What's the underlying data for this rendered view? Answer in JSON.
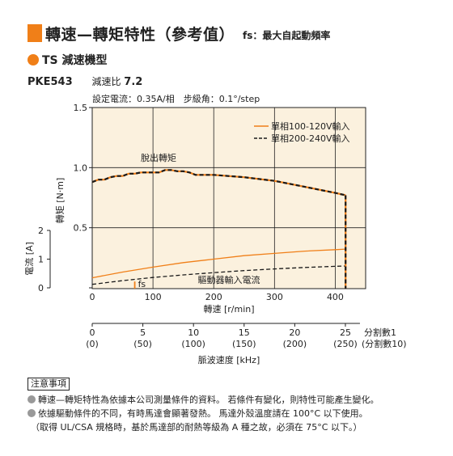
{
  "header": {
    "title": "轉速—轉矩特性（參考值）",
    "fs_note": "fs：最大自起動頻率"
  },
  "series_label": "TS 減速機型",
  "model": {
    "code": "PKE543",
    "ratio_label": "減速比",
    "ratio_value": "7.2"
  },
  "conditions": "設定電流：0.35A/相　步級角：0.1°/step",
  "chart_data": {
    "type": "line",
    "background": "#fbf1de",
    "torque_axis": {
      "title": "轉矩 [N·m]",
      "ylim": [
        0,
        1.5
      ],
      "ticks": [
        "1.5",
        "1.0",
        "0.5",
        "0"
      ],
      "tick_values": [
        1.5,
        1.0,
        0.5,
        0
      ]
    },
    "current_axis": {
      "title": "電流 [A]",
      "ylim": [
        0,
        2
      ],
      "ticks": [
        "2",
        "1",
        "0"
      ],
      "tick_values": [
        2,
        1,
        0
      ]
    },
    "speed_axis": {
      "title": "轉速 [r/min]",
      "xlim": [
        0,
        450
      ],
      "ticks": [
        "0",
        "100",
        "200",
        "300",
        "400"
      ],
      "tick_values": [
        0,
        100,
        200,
        300,
        400
      ]
    },
    "pulse_axis": {
      "title": "脈波速度 [kHz]",
      "ticks": [
        "0",
        "5",
        "10",
        "15",
        "20",
        "25"
      ],
      "tick_values": [
        0,
        5,
        10,
        15,
        20,
        25
      ],
      "subticks": [
        "(0)",
        "(50)",
        "(100)",
        "(150)",
        "(200)",
        "(250)"
      ],
      "division_labels": [
        "分割數1",
        "(分割數10)"
      ]
    },
    "grid": true,
    "legend_position": "top-right",
    "series": [
      {
        "name": "單相100-120V輸入",
        "color": "#f07f18",
        "dash": "solid"
      },
      {
        "name": "單相200-240V輸入",
        "color": "#1a1a1a",
        "dash": "dashed"
      }
    ],
    "pullout_torque": {
      "label": "脫出轉矩",
      "x": [
        0,
        10,
        20,
        30,
        40,
        50,
        60,
        70,
        80,
        90,
        100,
        110,
        120,
        130,
        140,
        150,
        160,
        170,
        180,
        190,
        200,
        250,
        300,
        350,
        400,
        417
      ],
      "y": [
        0.88,
        0.9,
        0.9,
        0.92,
        0.93,
        0.93,
        0.95,
        0.95,
        0.96,
        0.96,
        0.96,
        0.96,
        0.98,
        0.98,
        0.97,
        0.97,
        0.96,
        0.94,
        0.94,
        0.94,
        0.94,
        0.92,
        0.89,
        0.84,
        0.79,
        0.77
      ],
      "end_speed": 417
    },
    "driver_current": {
      "label": "驅動器輸入電流",
      "series": [
        {
          "name": "單相100-120V輸入",
          "x": [
            0,
            50,
            100,
            150,
            200,
            250,
            300,
            350,
            400,
            417
          ],
          "y": [
            0.35,
            0.55,
            0.72,
            0.88,
            1.0,
            1.12,
            1.2,
            1.28,
            1.33,
            1.35
          ]
        },
        {
          "name": "單相200-240V輸入",
          "x": [
            0,
            50,
            100,
            150,
            200,
            250,
            300,
            350,
            400,
            417
          ],
          "y": [
            0.12,
            0.25,
            0.36,
            0.45,
            0.53,
            0.6,
            0.66,
            0.71,
            0.75,
            0.76
          ]
        }
      ]
    },
    "fs": {
      "label": "fs",
      "x": 70,
      "current_top": 0.22
    }
  },
  "notes": {
    "title": "注意事項",
    "lines": [
      "轉速—轉矩特性為依據本公司測量條件的資料。 若條件有變化，則特性可能產生變化。",
      "依據驅動條件的不同，有時馬達會顯著發熱。 馬達外殼溫度請在 100°C 以下使用。",
      "（取得 UL/CSA 規格時，基於馬達部的耐熱等級為 A 種之故，必須在 75°C 以下。）"
    ]
  }
}
